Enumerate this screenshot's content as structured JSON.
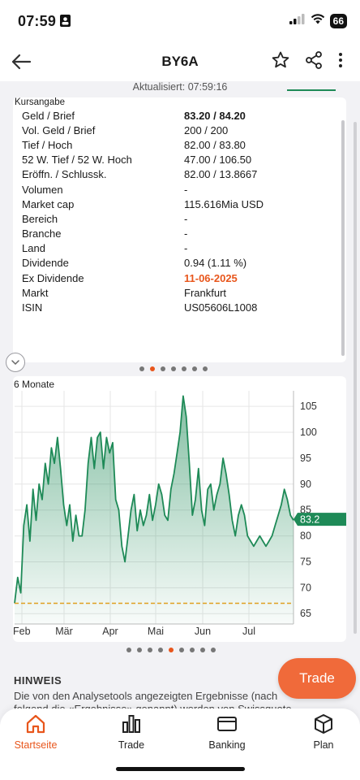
{
  "status": {
    "time": "07:59",
    "battery": "66"
  },
  "nav": {
    "title": "BY6A"
  },
  "updated": "Aktualisiert: 07:59:16",
  "quote": {
    "heading": "Kursangabe",
    "rows": [
      {
        "k": "Geld / Brief",
        "v": "83.20 / 84.20",
        "style": "bold"
      },
      {
        "k": "Vol. Geld / Brief",
        "v": "200 / 200",
        "style": ""
      },
      {
        "k": "Tief / Hoch",
        "v": "82.00 / 83.80",
        "style": ""
      },
      {
        "k": "52 W. Tief / 52 W. Hoch",
        "v": "47.00 / 106.50",
        "style": ""
      },
      {
        "k": "Eröffn. / Schlussk.",
        "v": "82.00 / 13.8667",
        "style": ""
      },
      {
        "k": "Volumen",
        "v": "-",
        "style": ""
      },
      {
        "k": "Market cap",
        "v": "115.616Mia USD",
        "style": ""
      },
      {
        "k": "Bereich",
        "v": "-",
        "style": ""
      },
      {
        "k": "Branche",
        "v": "-",
        "style": ""
      },
      {
        "k": "Land",
        "v": "-",
        "style": ""
      },
      {
        "k": "Dividende",
        "v": "0.94 (1.11 %)",
        "style": ""
      },
      {
        "k": "Ex Dividende",
        "v": "11-06-2025",
        "style": "red"
      },
      {
        "k": "Markt",
        "v": "Frankfurt",
        "style": ""
      },
      {
        "k": "ISIN",
        "v": "US05606L1008",
        "style": ""
      }
    ]
  },
  "pager1": {
    "count": 7,
    "active": 1
  },
  "pager2": {
    "count": 9,
    "active": 4
  },
  "chart_data": {
    "type": "area",
    "title": "6 Monate",
    "x_labels": [
      "Feb",
      "Mär",
      "Apr",
      "Mai",
      "Jun",
      "Jul"
    ],
    "y_ticks": [
      65,
      70,
      75,
      80,
      85,
      90,
      95,
      100,
      105
    ],
    "ylim": [
      63,
      108
    ],
    "current_value": "83.2",
    "reference_line": 67,
    "colors": {
      "line": "#1e8a57",
      "reference": "#e0a021",
      "marker": "#1e8a57"
    },
    "values": [
      67,
      72,
      69,
      82,
      86,
      79,
      89,
      83,
      90,
      87,
      94,
      90,
      97,
      94,
      99,
      93,
      86,
      82,
      86,
      79,
      84,
      80,
      80,
      85,
      94,
      99,
      93,
      99,
      100,
      93,
      99,
      96,
      98,
      87,
      85,
      78,
      75,
      80,
      85,
      88,
      81,
      85,
      82,
      84,
      88,
      83,
      86,
      90,
      88,
      84,
      83,
      89,
      92,
      96,
      100,
      107,
      103,
      94,
      84,
      87,
      93,
      85,
      82,
      89,
      90,
      85,
      88,
      90,
      95,
      92,
      88,
      83,
      80,
      84,
      86,
      84,
      80,
      79,
      78,
      79,
      80,
      79,
      78,
      79,
      80,
      82,
      84,
      86,
      89,
      87,
      84,
      83
    ]
  },
  "hinweis": {
    "title": "HINWEIS",
    "text": "Die von den Analysetools angezeigten Ergebnisse (nach folgend die «Ergebnisse» genannt) werden von Swissquote Bank AG"
  },
  "fab": {
    "label": "Trade"
  },
  "tabs": [
    {
      "label": "Startseite",
      "icon": "home-icon"
    },
    {
      "label": "Trade",
      "icon": "bar-chart-icon"
    },
    {
      "label": "Banking",
      "icon": "card-icon"
    },
    {
      "label": "Plan",
      "icon": "box-icon"
    }
  ]
}
